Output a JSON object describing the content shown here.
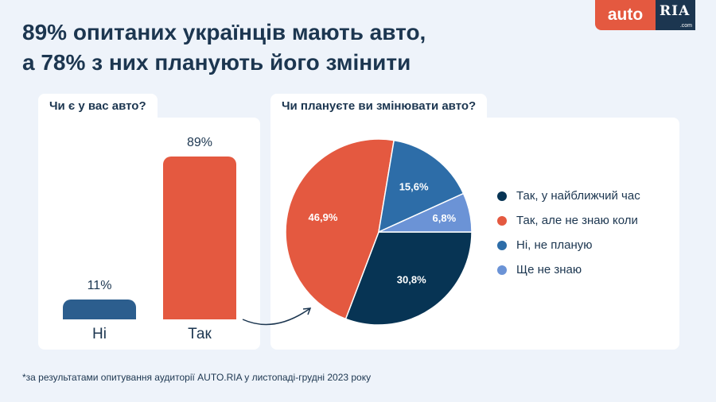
{
  "title": {
    "line1": "89% опитаних українців мають авто,",
    "line2": "а 78% з них планують його змінити"
  },
  "logo": {
    "auto": "auto",
    "ria": "RIA",
    "com": ".com"
  },
  "colors": {
    "dark": "#073454",
    "orange": "#e45940",
    "blue": "#2d6da8",
    "light_blue": "#6b93d6",
    "bar_dark": "#2c5e8e"
  },
  "chart_data": [
    {
      "type": "bar",
      "title": "Чи є у вас авто?",
      "categories": [
        "Ні",
        "Так"
      ],
      "values": [
        11,
        89
      ],
      "value_labels": [
        "11%",
        "89%"
      ],
      "ylim": [
        0,
        89
      ],
      "grid": false
    },
    {
      "type": "pie",
      "title": "Чи плануєте ви змінювати авто?",
      "labels": [
        "Так, у найближчий час",
        "Так, але не знаю коли",
        "Ні, не планую",
        "Ще не знаю"
      ],
      "values": [
        30.8,
        46.9,
        15.6,
        6.8
      ],
      "value_labels": [
        "30,8%",
        "46,9%",
        "15,6%",
        "6,8%"
      ],
      "legend_position": "right"
    }
  ],
  "footnote": "*за результатами опитування аудиторії AUTO.RIA у листопаді-грудні 2023 року"
}
